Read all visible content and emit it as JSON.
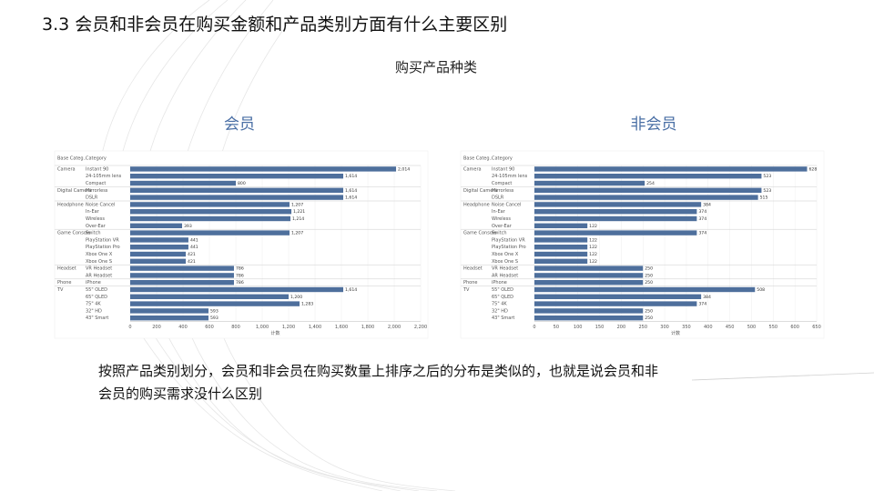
{
  "header": {
    "title": "3.3 会员和非会员在购买金额和产品类别方面有什么主要区别"
  },
  "subtitle": "购买产品种类",
  "chart_data": [
    {
      "type": "bar",
      "title": "会员",
      "group_header": "Base Categ..",
      "category_header": "Category",
      "x_title": "计数",
      "color": "#4e6f9c",
      "xlim": [
        0,
        2200
      ],
      "xticks": [
        0,
        200,
        400,
        600,
        800,
        {
          "value": 1000,
          "label": "1,000"
        },
        {
          "value": 1200,
          "label": "1,200"
        },
        {
          "value": 1400,
          "label": "1,400"
        },
        {
          "value": 1600,
          "label": "1,600"
        },
        {
          "value": 1800,
          "label": "1,800"
        },
        {
          "value": 2000,
          "label": "2,000"
        },
        {
          "value": 2200,
          "label": "2,200"
        }
      ],
      "groups": [
        {
          "name": "Camera",
          "categories": [
            "Instant 90",
            "24-105mm lens",
            "Compact"
          ],
          "values": [
            2014,
            1614,
            800
          ],
          "value_labels": [
            "2,014",
            "1,614",
            "800"
          ]
        },
        {
          "name": "Digital Camera",
          "categories": [
            "Mirrorless",
            "DSLR"
          ],
          "values": [
            1614,
            1614
          ],
          "value_labels": [
            "1,614",
            "1,614"
          ]
        },
        {
          "name": "Headphone",
          "categories": [
            "Noise Cancel",
            "In-Ear",
            "Wireless",
            "Over-Ear"
          ],
          "values": [
            1207,
            1221,
            1214,
            393
          ],
          "value_labels": [
            "1,207",
            "1,221",
            "1,214",
            "393"
          ]
        },
        {
          "name": "Game Console",
          "categories": [
            "Switch",
            "PlayStation VR",
            "PlayStation Pro",
            "Xbox One X",
            "Xbox One S"
          ],
          "values": [
            1207,
            441,
            441,
            421,
            421
          ],
          "value_labels": [
            "1,207",
            "441",
            "441",
            "421",
            "421"
          ]
        },
        {
          "name": "Headset",
          "categories": [
            "VR Headset",
            "AR Headset"
          ],
          "values": [
            786,
            786
          ],
          "value_labels": [
            "786",
            "786"
          ]
        },
        {
          "name": "Phone",
          "categories": [
            "iPhone"
          ],
          "values": [
            786
          ],
          "value_labels": [
            "786"
          ]
        },
        {
          "name": "TV",
          "categories": [
            "55\" OLED",
            "65\" QLED",
            "75\" 4K",
            "32\" HD",
            "43\" Smart"
          ],
          "values": [
            1614,
            1200,
            1283,
            593,
            593
          ],
          "value_labels": [
            "1,614",
            "1,200",
            "1,283",
            "593",
            "593"
          ]
        }
      ]
    },
    {
      "type": "bar",
      "title": "非会员",
      "group_header": "Base Categ..",
      "category_header": "Category",
      "x_title": "计数",
      "color": "#4e6f9c",
      "xlim": [
        0,
        650
      ],
      "xticks": [
        0,
        50,
        100,
        150,
        200,
        250,
        300,
        350,
        400,
        450,
        500,
        550,
        600,
        650
      ],
      "groups": [
        {
          "name": "Camera",
          "categories": [
            "Instant 90",
            "24-105mm lens",
            "Compact"
          ],
          "values": [
            628,
            523,
            254
          ],
          "value_labels": [
            "628",
            "523",
            "254"
          ]
        },
        {
          "name": "Digital Camera",
          "categories": [
            "Mirrorless",
            "DSLR"
          ],
          "values": [
            523,
            515
          ],
          "value_labels": [
            "523",
            "515"
          ]
        },
        {
          "name": "Headphone",
          "categories": [
            "Noise Cancel",
            "In-Ear",
            "Wireless",
            "Over-Ear"
          ],
          "values": [
            384,
            374,
            374,
            122
          ],
          "value_labels": [
            "384",
            "374",
            "374",
            "122"
          ]
        },
        {
          "name": "Game Console",
          "categories": [
            "Switch",
            "PlayStation VR",
            "PlayStation Pro",
            "Xbox One X",
            "Xbox One S"
          ],
          "values": [
            374,
            122,
            122,
            122,
            122
          ],
          "value_labels": [
            "374",
            "122",
            "122",
            "122",
            "122"
          ]
        },
        {
          "name": "Headset",
          "categories": [
            "VR Headset",
            "AR Headset"
          ],
          "values": [
            250,
            250
          ],
          "value_labels": [
            "250",
            "250"
          ]
        },
        {
          "name": "Phone",
          "categories": [
            "iPhone"
          ],
          "values": [
            250
          ],
          "value_labels": [
            "250"
          ]
        },
        {
          "name": "TV",
          "categories": [
            "55\" OLED",
            "65\" QLED",
            "75\" 4K",
            "32\" HD",
            "43\" Smart"
          ],
          "values": [
            508,
            384,
            374,
            250,
            250
          ],
          "value_labels": [
            "508",
            "384",
            "374",
            "250",
            "250"
          ]
        }
      ]
    }
  ],
  "body": {
    "lines": [
      "按照产品类别划分，会员和非会员在购买数量上排序之后的分布是类似的，也就是说会员和非",
      "会员的购买需求没什么区别"
    ]
  }
}
